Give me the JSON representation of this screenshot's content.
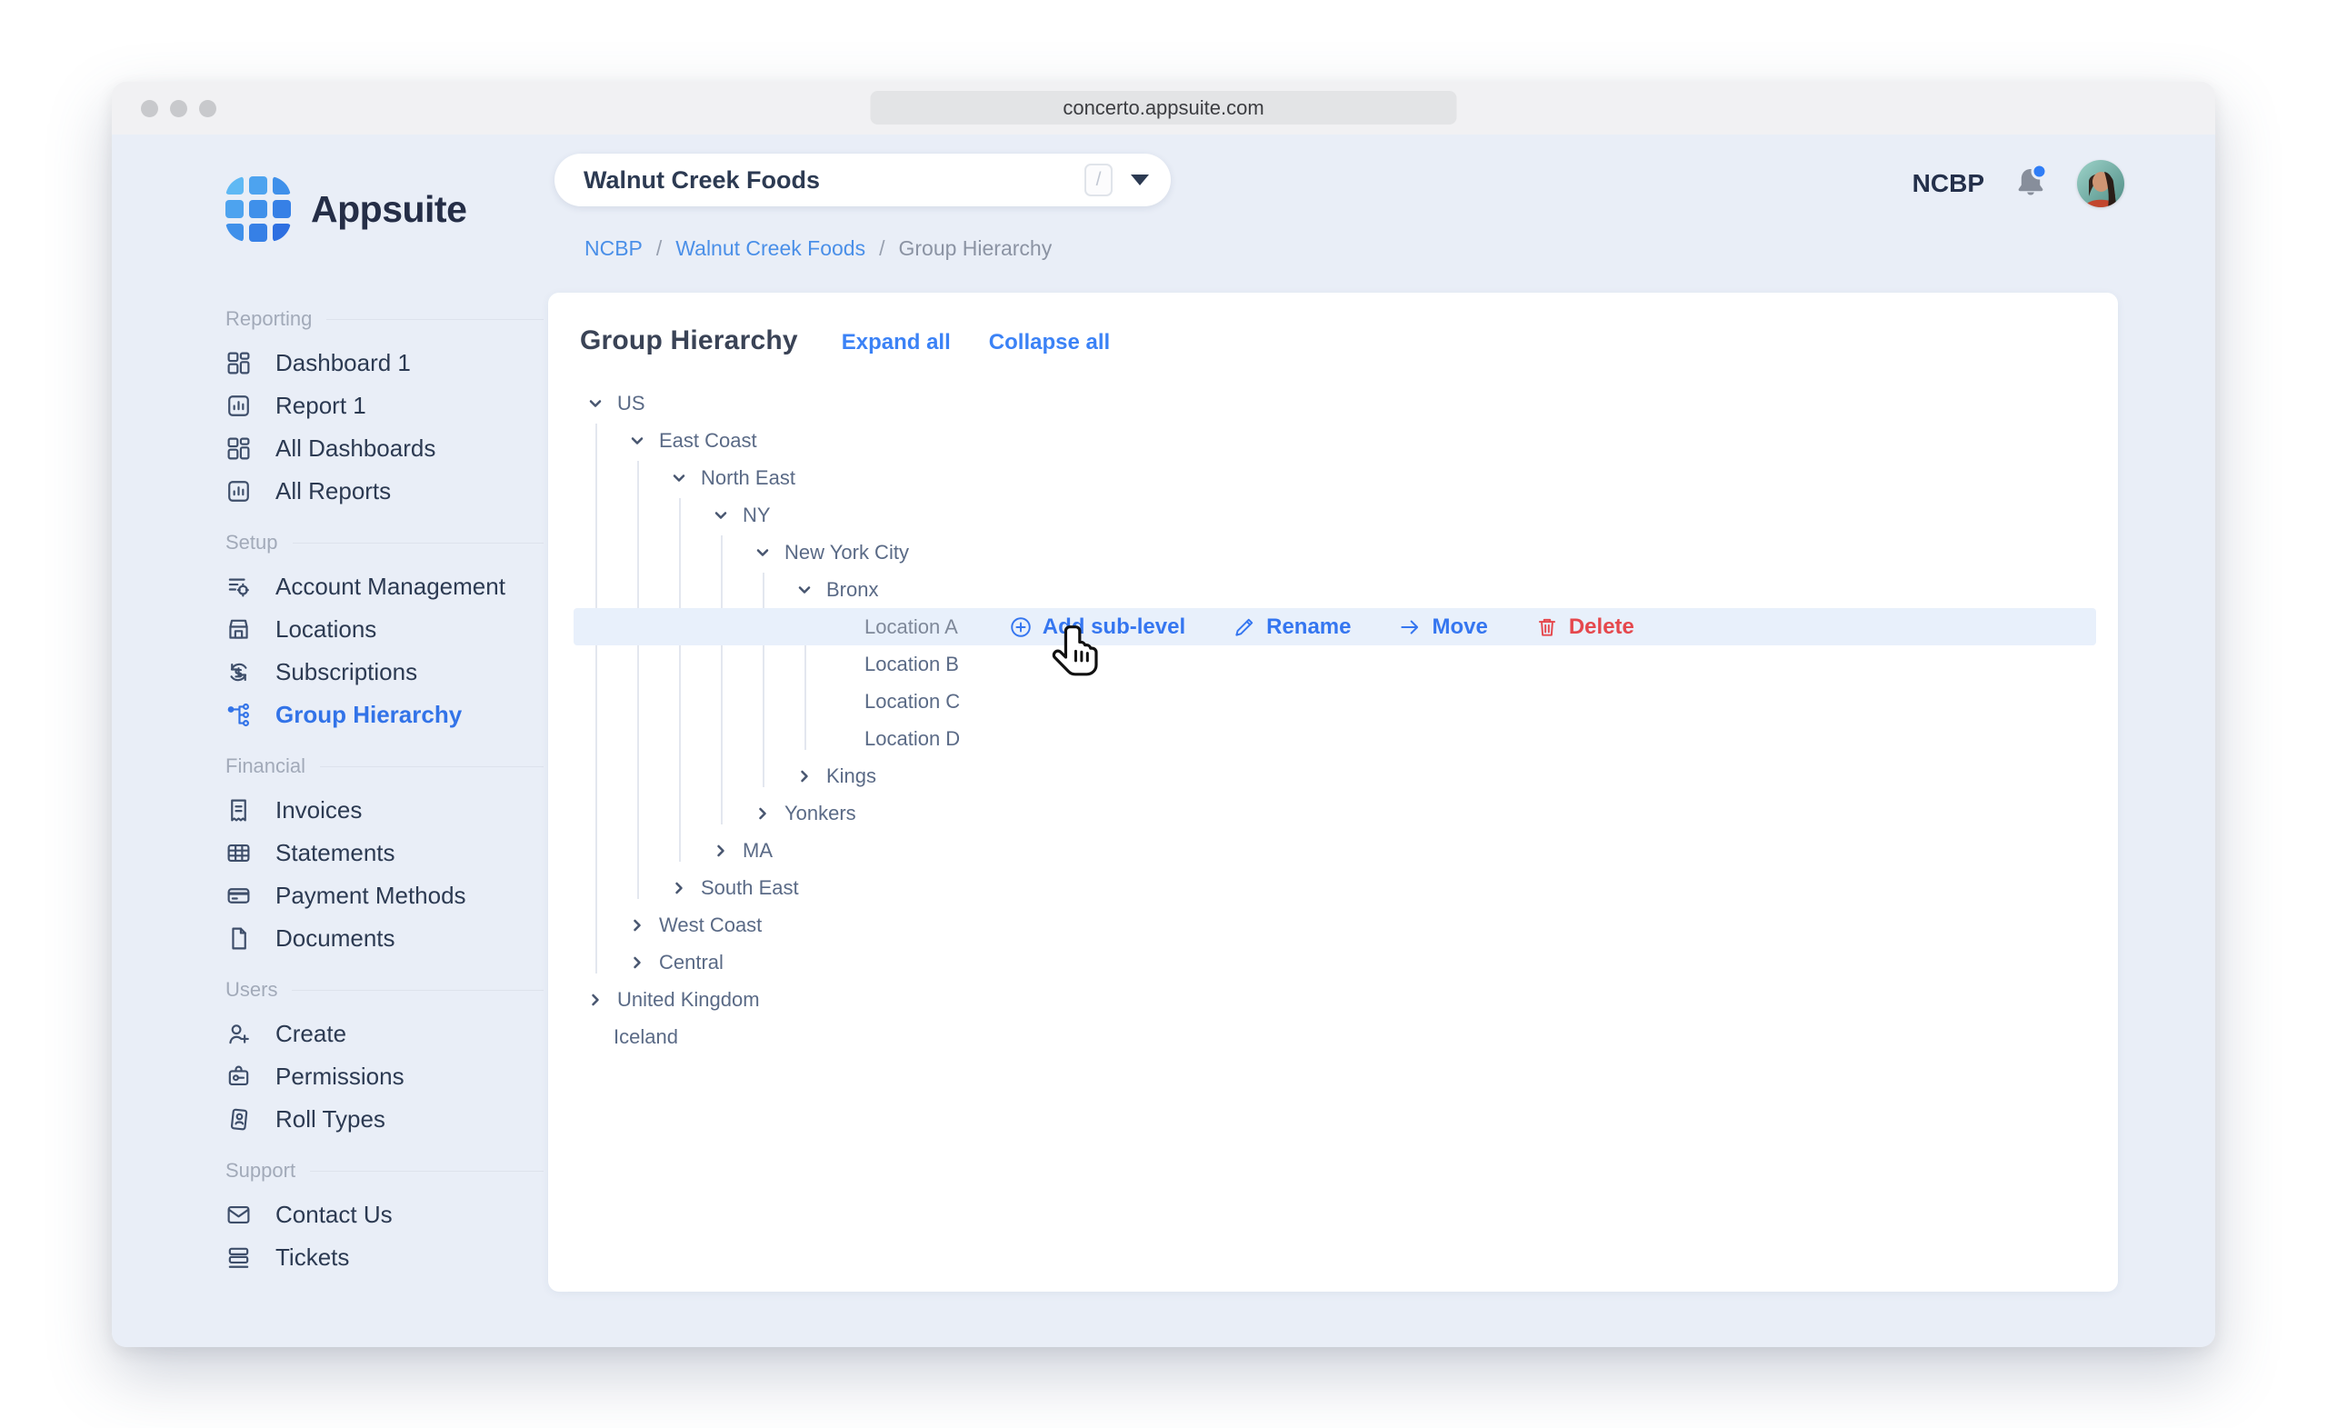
{
  "window": {
    "url": "concerto.appsuite.com"
  },
  "brand": {
    "name": "Appsuite"
  },
  "topbar": {
    "org_selector": {
      "value": "Walnut Creek Foods",
      "shortcut": "/"
    },
    "account_code": "NCBP",
    "notifications": {
      "unread_dot": true
    }
  },
  "breadcrumb": {
    "separator": "/",
    "items": [
      {
        "label": "NCBP",
        "type": "link"
      },
      {
        "label": "Walnut Creek Foods",
        "type": "link"
      },
      {
        "label": "Group Hierarchy",
        "type": "current"
      }
    ]
  },
  "sidebar": {
    "sections": [
      {
        "label": "Reporting",
        "items": [
          {
            "label": "Dashboard 1",
            "icon": "dashboard-icon"
          },
          {
            "label": "Report 1",
            "icon": "report-icon"
          },
          {
            "label": "All Dashboards",
            "icon": "dashboard-icon"
          },
          {
            "label": "All Reports",
            "icon": "report-icon"
          }
        ]
      },
      {
        "label": "Setup",
        "items": [
          {
            "label": "Account Management",
            "icon": "account-management-icon"
          },
          {
            "label": "Locations",
            "icon": "locations-icon"
          },
          {
            "label": "Subscriptions",
            "icon": "subscriptions-icon"
          },
          {
            "label": "Group Hierarchy",
            "icon": "hierarchy-icon",
            "active": true
          }
        ]
      },
      {
        "label": "Financial",
        "items": [
          {
            "label": "Invoices",
            "icon": "invoice-icon"
          },
          {
            "label": "Statements",
            "icon": "statements-icon"
          },
          {
            "label": "Payment Methods",
            "icon": "payment-icon"
          },
          {
            "label": "Documents",
            "icon": "document-icon"
          }
        ]
      },
      {
        "label": "Users",
        "items": [
          {
            "label": "Create",
            "icon": "user-plus-icon"
          },
          {
            "label": "Permissions",
            "icon": "permissions-icon"
          },
          {
            "label": "Roll Types",
            "icon": "roll-types-icon"
          }
        ]
      },
      {
        "label": "Support",
        "items": [
          {
            "label": "Contact Us",
            "icon": "mail-icon"
          },
          {
            "label": "Tickets",
            "icon": "tickets-icon"
          }
        ]
      }
    ]
  },
  "page": {
    "title": "Group Hierarchy",
    "expand_all_label": "Expand all",
    "collapse_all_label": "Collapse all"
  },
  "tree": {
    "nodes": [
      {
        "label": "US",
        "level": 0,
        "state": "expanded"
      },
      {
        "label": "East Coast",
        "level": 1,
        "state": "expanded"
      },
      {
        "label": "North East",
        "level": 2,
        "state": "expanded"
      },
      {
        "label": "NY",
        "level": 3,
        "state": "expanded"
      },
      {
        "label": "New York City",
        "level": 4,
        "state": "expanded"
      },
      {
        "label": "Bronx",
        "level": 5,
        "state": "expanded"
      },
      {
        "label": "Location A",
        "level": 6,
        "state": "leaf",
        "selected": true
      },
      {
        "label": "Location B",
        "level": 6,
        "state": "leaf"
      },
      {
        "label": "Location C",
        "level": 6,
        "state": "leaf"
      },
      {
        "label": "Location D",
        "level": 6,
        "state": "leaf"
      },
      {
        "label": "Kings",
        "level": 5,
        "state": "collapsed"
      },
      {
        "label": "Yonkers",
        "level": 4,
        "state": "collapsed"
      },
      {
        "label": "MA",
        "level": 3,
        "state": "collapsed"
      },
      {
        "label": "South East",
        "level": 2,
        "state": "collapsed"
      },
      {
        "label": "West Coast",
        "level": 1,
        "state": "collapsed"
      },
      {
        "label": "Central",
        "level": 1,
        "state": "collapsed"
      },
      {
        "label": "United Kingdom",
        "level": 0,
        "state": "collapsed"
      },
      {
        "label": "Iceland",
        "level": 0,
        "state": "leaf"
      }
    ],
    "row_actions": [
      {
        "label": "Add sub-level",
        "icon": "add-sublevel-icon",
        "color": "blue"
      },
      {
        "label": "Rename",
        "icon": "rename-icon",
        "color": "blue"
      },
      {
        "label": "Move",
        "icon": "move-icon",
        "color": "blue"
      },
      {
        "label": "Delete",
        "icon": "delete-icon",
        "color": "red"
      }
    ]
  },
  "colors": {
    "accent": "#3273e8",
    "link": "#3b82f6",
    "danger": "#e5484d",
    "row_highlight": "#e8f0fb",
    "app_background": "#e9eef7"
  }
}
